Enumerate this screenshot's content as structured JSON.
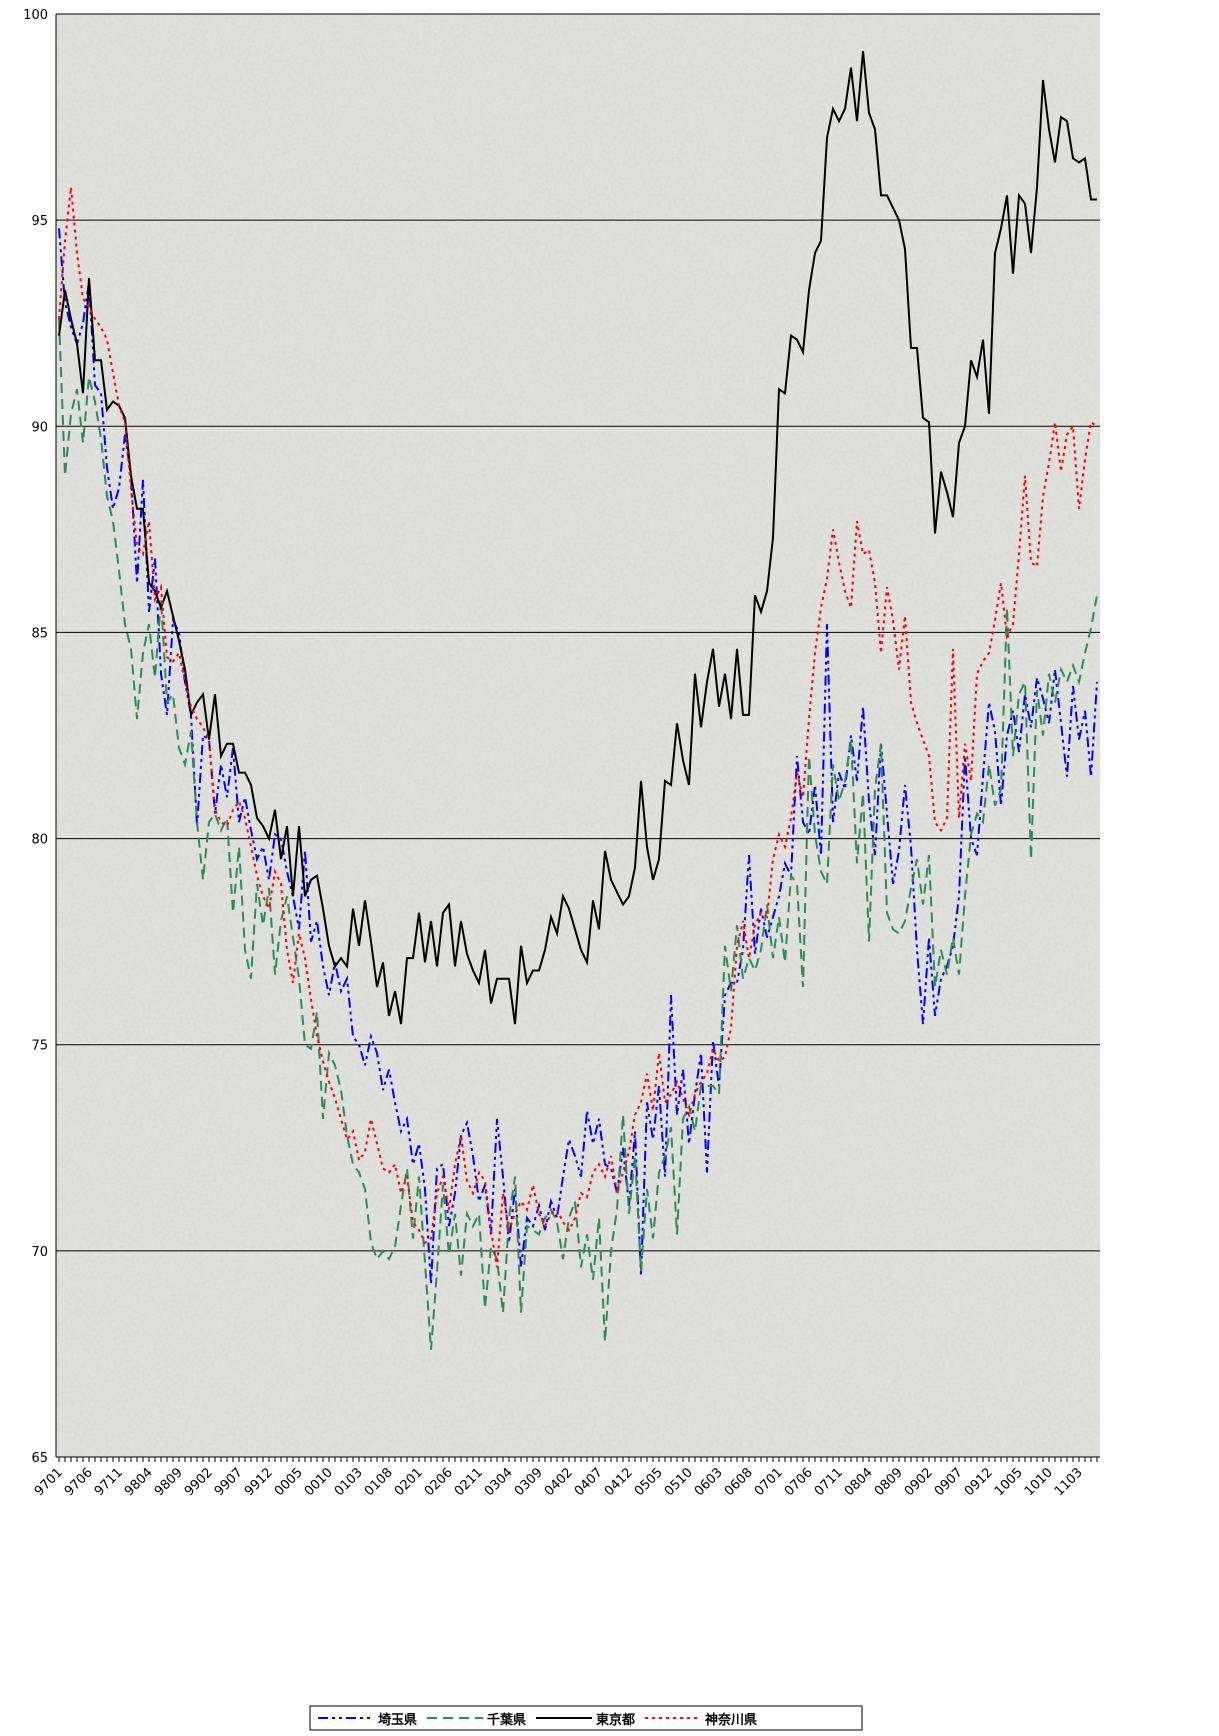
{
  "chart_data": {
    "type": "line",
    "categories": [
      "9701",
      null,
      null,
      null,
      null,
      "9706",
      null,
      null,
      null,
      null,
      "9711",
      null,
      null,
      null,
      null,
      "9804",
      null,
      null,
      null,
      null,
      "9809",
      null,
      null,
      null,
      null,
      "9902",
      null,
      null,
      null,
      null,
      "9907",
      null,
      null,
      null,
      null,
      "9912",
      null,
      null,
      null,
      null,
      "0005",
      null,
      null,
      null,
      null,
      "0010",
      null,
      null,
      null,
      null,
      "0103",
      null,
      null,
      null,
      null,
      "0108",
      null,
      null,
      null,
      null,
      "0201",
      null,
      null,
      null,
      null,
      "0206",
      null,
      null,
      null,
      null,
      "0211",
      null,
      null,
      null,
      null,
      "0304",
      null,
      null,
      null,
      null,
      "0309",
      null,
      null,
      null,
      null,
      "0402",
      null,
      null,
      null,
      null,
      "0407",
      null,
      null,
      null,
      null,
      "0412",
      null,
      null,
      null,
      null,
      "0505",
      null,
      null,
      null,
      null,
      "0510",
      null,
      null,
      null,
      null,
      "0603",
      null,
      null,
      null,
      null,
      "0608",
      null,
      null,
      null,
      null,
      "0701",
      null,
      null,
      null,
      null,
      "0706",
      null,
      null,
      null,
      null,
      "0711",
      null,
      null,
      null,
      null,
      "0804",
      null,
      null,
      null,
      null,
      "0809",
      null,
      null,
      null,
      null,
      "0902",
      null,
      null,
      null,
      null,
      "0907",
      null,
      null,
      null,
      null,
      "0912",
      null,
      null,
      null,
      null,
      "1005",
      null,
      null,
      null,
      null,
      "1010",
      null,
      null,
      null,
      null,
      "1103",
      null,
      null,
      null
    ],
    "series": [
      {
        "name": "埼玉県",
        "color": "#0000ff",
        "dash": "dashdot",
        "values": [
          94.8,
          93,
          92.4,
          92,
          92.5,
          93.5,
          91,
          90.8,
          89,
          88,
          88.5,
          89.8,
          88.8,
          86.2,
          88.7,
          85.5,
          86.8,
          84,
          83,
          85.3,
          85,
          83.8,
          83,
          80.3,
          82.5,
          82.4,
          80.6,
          81.8,
          81,
          82.2,
          80.4,
          81,
          80.2,
          79.5,
          79.8,
          79,
          80.1,
          80,
          79.2,
          78.6,
          77.8,
          79.7,
          77.5,
          78,
          76.9,
          76.2,
          77,
          76.3,
          76.6,
          75.2,
          75,
          74.5,
          75.2,
          74.8,
          73.9,
          74.4,
          73.6,
          72.9,
          73.2,
          72.1,
          72.6,
          71.5,
          69.2,
          72,
          72.1,
          70.6,
          71.4,
          72.8,
          73.1,
          72.3,
          71.2,
          71.6,
          70.4,
          73.2,
          71.8,
          70.2,
          71.5,
          69.6,
          70.8,
          70.6,
          71.1,
          70.5,
          71.2,
          70.8,
          71.8,
          72.7,
          72.3,
          71.8,
          73.4,
          72.6,
          73.2,
          72.1,
          72,
          71.4,
          72.5,
          71.1,
          72.9,
          69.4,
          73.6,
          72.7,
          74,
          71.8,
          76.2,
          73.3,
          74.4,
          72.6,
          73.8,
          74.8,
          71.9,
          75.1,
          74,
          76.2,
          76.5,
          76.5,
          77.3,
          79.6,
          77.2,
          78.3,
          77.6,
          78.1,
          78.6,
          79.4,
          79.1,
          82,
          80.4,
          80.1,
          81.3,
          79.6,
          85.2,
          80.4,
          81.6,
          81.2,
          82.5,
          81.4,
          83.2,
          80.9,
          79.6,
          82.3,
          80.6,
          78.9,
          79.7,
          81.3,
          79.8,
          77.3,
          75.5,
          77.6,
          75.7,
          76.6,
          76.9,
          77.4,
          78.6,
          82,
          80,
          79.6,
          81.5,
          83.3,
          82.6,
          80.8,
          82.5,
          83.1,
          82.1,
          83.5,
          82.7,
          83.9,
          83.4,
          82.8,
          84.1,
          82.8,
          81.5,
          83.7,
          82.4,
          83.1,
          81.5,
          83.8
        ]
      },
      {
        "name": "千葉県",
        "color": "#2e8b57",
        "dash": "dash",
        "values": [
          92.6,
          88.8,
          90.3,
          90.9,
          89.6,
          91.2,
          90.6,
          89.7,
          88.3,
          87.7,
          86.5,
          85.2,
          84.6,
          82.9,
          84.5,
          85.2,
          83.9,
          85.8,
          83.3,
          83.5,
          82.2,
          81.8,
          82.6,
          80.4,
          79,
          80.4,
          80.6,
          80.2,
          80.5,
          78.2,
          79.8,
          77.3,
          76.6,
          78.9,
          77.9,
          78.8,
          76.7,
          78,
          78.6,
          77.6,
          76.6,
          75,
          74.9,
          75.8,
          73.2,
          74.8,
          74.5,
          73.9,
          72.8,
          72.1,
          71.9,
          71.5,
          70.2,
          69.8,
          70,
          69.8,
          70.1,
          71.1,
          72,
          70.3,
          71.8,
          69.7,
          67.6,
          69.5,
          71.6,
          69.9,
          70.9,
          69.4,
          70.9,
          70.6,
          70.9,
          68.6,
          70.1,
          69.8,
          68.5,
          70.8,
          71.8,
          68.5,
          70.6,
          70.5,
          70.4,
          70.8,
          71,
          70.7,
          69.8,
          70.8,
          71.2,
          69.6,
          70.4,
          69.3,
          70.8,
          67.8,
          70,
          71,
          73.3,
          70.9,
          72.3,
          69.5,
          71.5,
          70.3,
          71.9,
          72.3,
          73,
          70.4,
          73.2,
          73.5,
          72.9,
          74,
          74,
          74,
          73.8,
          77.4,
          76.3,
          77.9,
          76.6,
          77.1,
          76.8,
          77.3,
          78.4,
          77.1,
          78.1,
          77,
          79.1,
          78.9,
          76.4,
          82,
          80.1,
          79.2,
          78.9,
          81.8,
          80.9,
          81.4,
          82.4,
          79.4,
          81.1,
          77.5,
          81.2,
          82.3,
          78.2,
          77.8,
          77.7,
          78,
          78.8,
          79.5,
          78.4,
          79.6,
          76.4,
          77.3,
          76.7,
          77.6,
          76.7,
          78.6,
          80.1,
          80.6,
          80.4,
          81.8,
          80.8,
          81.2,
          85.6,
          82,
          83.5,
          83.8,
          79.5,
          83.6,
          82.5,
          84,
          83.3,
          84.1,
          83.8,
          84.2,
          83.8,
          84.5,
          85.1,
          85.9
        ]
      },
      {
        "name": "東京都",
        "color": "#000000",
        "dash": "solid",
        "values": [
          92.2,
          93.3,
          92.6,
          92,
          90.8,
          93.6,
          91.6,
          91.6,
          90.4,
          90.6,
          90.5,
          90.2,
          88.8,
          88,
          88,
          86.2,
          86,
          85.6,
          86,
          85.4,
          84.8,
          84.1,
          83,
          83.3,
          83.5,
          82.4,
          83.5,
          82,
          82.3,
          82.3,
          81.6,
          81.6,
          81.3,
          80.5,
          80.3,
          80,
          80.7,
          79.5,
          80.3,
          78.6,
          80.3,
          78.6,
          79,
          79.1,
          78.3,
          77.4,
          76.9,
          77.1,
          76.9,
          78.3,
          77.4,
          78.5,
          77.5,
          76.4,
          77,
          75.7,
          76.3,
          75.5,
          77.1,
          77.1,
          78.2,
          77,
          78,
          76.9,
          78.2,
          78.4,
          76.9,
          78,
          77.2,
          76.8,
          76.5,
          77.3,
          76,
          76.6,
          76.6,
          76.6,
          75.5,
          77.4,
          76.5,
          76.8,
          76.8,
          77.3,
          78.1,
          77.7,
          78.6,
          78.3,
          77.8,
          77.3,
          77,
          78.5,
          77.8,
          79.7,
          79,
          78.7,
          78.4,
          78.6,
          79.3,
          81.4,
          79.8,
          79,
          79.5,
          81.4,
          81.3,
          82.8,
          81.9,
          81.3,
          84,
          82.7,
          83.8,
          84.6,
          83.2,
          84,
          82.9,
          84.6,
          83,
          83,
          85.9,
          85.5,
          86,
          87.3,
          90.9,
          90.8,
          92.2,
          92.1,
          91.8,
          93.3,
          94.2,
          94.5,
          97,
          97.7,
          97.4,
          97.7,
          98.7,
          97.4,
          99.1,
          97.6,
          97.2,
          95.6,
          95.6,
          95.3,
          95,
          94.3,
          91.9,
          91.9,
          90.2,
          90.1,
          87.4,
          88.9,
          88.4,
          87.8,
          89.6,
          90,
          91.6,
          91.2,
          92.1,
          90.3,
          94.2,
          94.8,
          95.6,
          93.7,
          95.6,
          95.4,
          94.2,
          95.8,
          98.4,
          97.2,
          96.4,
          97.5,
          97.4,
          96.5,
          96.4,
          96.5,
          95.5,
          95.5
        ]
      },
      {
        "name": "神奈川県",
        "color": "#ff0000",
        "dash": "dot",
        "values": [
          92.6,
          94.5,
          95.8,
          94.2,
          93.1,
          92.9,
          92.6,
          92.4,
          92.1,
          91.3,
          90.5,
          90.1,
          88.5,
          87.1,
          86.9,
          87.7,
          85.8,
          86.1,
          84.4,
          84.3,
          84.5,
          83.8,
          83.2,
          82.9,
          82.7,
          82.4,
          80.7,
          80.4,
          80.3,
          80.7,
          80.9,
          80.5,
          79.8,
          79.1,
          78.6,
          78.3,
          79.2,
          78.9,
          77.3,
          76.5,
          77.7,
          77.1,
          76.1,
          75.2,
          74.6,
          74.1,
          73.7,
          73.2,
          72.7,
          72.9,
          72.2,
          72.4,
          73.2,
          72.6,
          72,
          71.9,
          72.1,
          71.4,
          71.8,
          70.7,
          70.5,
          70.2,
          70.3,
          71.4,
          71.8,
          71,
          72.1,
          72.8,
          71.7,
          71.4,
          71.9,
          71.7,
          70.5,
          69.6,
          71.4,
          70.5,
          70.9,
          71.2,
          71,
          71.6,
          70.9,
          70.6,
          70.9,
          71,
          70.7,
          70.5,
          70.8,
          71.4,
          71.3,
          71.9,
          72.1,
          71.8,
          72.3,
          71.4,
          71.9,
          72.4,
          73.3,
          73.6,
          74.3,
          73.4,
          74.8,
          73.6,
          73.8,
          74.1,
          73.7,
          73.3,
          73.8,
          74.1,
          74.3,
          74.9,
          74.6,
          74.7,
          75.4,
          77.4,
          78,
          77.1,
          77.9,
          78.2,
          78.1,
          79.5,
          80.1,
          79.8,
          80.5,
          81.6,
          81,
          82.9,
          84.5,
          85.6,
          86.3,
          87.5,
          86.7,
          86,
          85.6,
          87.7,
          86.9,
          87,
          86.2,
          84.5,
          86.1,
          85.3,
          84.1,
          85.4,
          83.3,
          82.8,
          82.4,
          82,
          80.4,
          80.2,
          80.5,
          84.6,
          80.5,
          82.3,
          81.4,
          84,
          84.3,
          84.5,
          85.3,
          86.2,
          84.9,
          85.2,
          86.9,
          88.8,
          86.7,
          86.6,
          88.3,
          89.1,
          90.1,
          88.9,
          89.8,
          90,
          88,
          89.2,
          90.1,
          90
        ]
      }
    ],
    "ylim": [
      65,
      100
    ],
    "yticks": [
      65,
      70,
      75,
      80,
      85,
      90,
      95,
      100
    ],
    "grid": true,
    "legend": "bottom"
  }
}
